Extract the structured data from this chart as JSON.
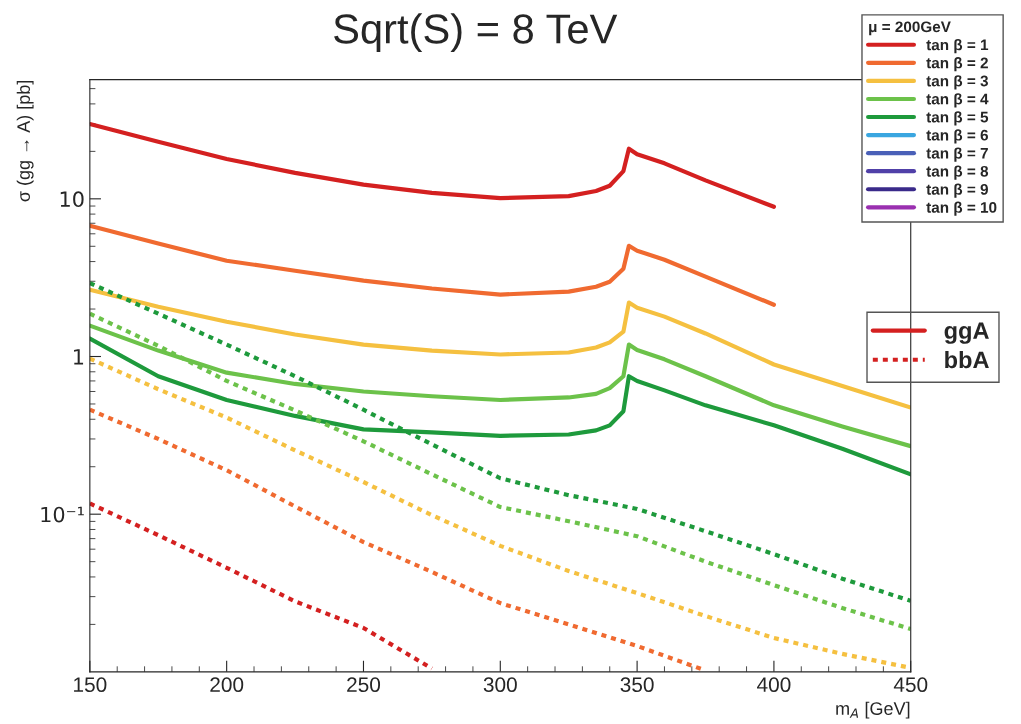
{
  "chart_data": {
    "type": "line",
    "title": "Sqrt(S) = 8 TeV",
    "ylabel": "σ (gg → A) [pb]",
    "xlabel": "m$_{A}$ [GeV]",
    "legend_title": "μ = 200GeV",
    "log": "y",
    "xlim": [
      150,
      450
    ],
    "xticks": [
      150,
      200,
      250,
      300,
      350,
      400,
      450
    ],
    "ylim": [
      0.01,
      57
    ],
    "yticks": [
      {
        "value": 0.1,
        "label": "10⁻¹"
      },
      1,
      10
    ],
    "grid": false,
    "legend": "top right",
    "annotations": [
      "ggA",
      "bbA"
    ],
    "series": [
      {
        "name": "tan β = 1",
        "color": "#d42020",
        "line_style": "solid",
        "x": [
          150,
          175,
          200,
          225,
          250,
          275,
          300,
          325,
          335,
          340,
          345,
          347,
          350,
          360,
          375,
          400
        ],
        "values": [
          29.8,
          23,
          17.9,
          14.6,
          12.3,
          10.9,
          10.1,
          10.4,
          11.2,
          12.1,
          15,
          20.8,
          19.2,
          16.8,
          13.1,
          8.9
        ]
      },
      {
        "name": "tan β = 2",
        "color": "#f06a30",
        "line_style": "solid",
        "x": [
          150,
          175,
          200,
          225,
          250,
          275,
          300,
          325,
          335,
          340,
          345,
          347,
          350,
          360,
          375,
          400
        ],
        "values": [
          6.75,
          5.2,
          4.05,
          3.5,
          3.03,
          2.7,
          2.47,
          2.58,
          2.77,
          2.98,
          3.6,
          5.04,
          4.69,
          4.11,
          3.21,
          2.13
        ]
      },
      {
        "name": "tan β = 3",
        "color": "#f5c040",
        "line_style": "solid",
        "x": [
          150,
          175,
          200,
          225,
          250,
          275,
          300,
          325,
          335,
          340,
          345,
          347,
          350,
          360,
          375,
          400,
          425,
          450
        ],
        "values": [
          2.65,
          2.07,
          1.66,
          1.38,
          1.19,
          1.09,
          1.03,
          1.06,
          1.14,
          1.23,
          1.44,
          2.2,
          2.04,
          1.79,
          1.4,
          0.89,
          0.65,
          0.475
        ]
      },
      {
        "name": "tan β = 4",
        "color": "#6cc24a",
        "line_style": "solid",
        "x": [
          150,
          175,
          200,
          225,
          250,
          275,
          300,
          325,
          335,
          340,
          345,
          347,
          350,
          360,
          375,
          400,
          425,
          450
        ],
        "values": [
          1.57,
          1.09,
          0.79,
          0.67,
          0.6,
          0.56,
          0.53,
          0.55,
          0.58,
          0.63,
          0.75,
          1.19,
          1.1,
          0.96,
          0.75,
          0.49,
          0.36,
          0.27
        ]
      },
      {
        "name": "tan β = 5",
        "color": "#1e9a3c",
        "line_style": "solid",
        "x": [
          150,
          175,
          200,
          225,
          250,
          275,
          300,
          325,
          335,
          340,
          345,
          347,
          350,
          360,
          375,
          400,
          425,
          450
        ],
        "values": [
          1.3,
          0.75,
          0.53,
          0.42,
          0.345,
          0.33,
          0.314,
          0.32,
          0.34,
          0.366,
          0.45,
          0.75,
          0.7,
          0.61,
          0.49,
          0.366,
          0.26,
          0.179
        ]
      },
      {
        "name": "tan β = 6",
        "color": "#3aa6e0",
        "line_style": "solid"
      },
      {
        "name": "tan β = 7",
        "color": "#4a60b8",
        "line_style": "solid"
      },
      {
        "name": "tan β = 8",
        "color": "#5040a8",
        "line_style": "solid"
      },
      {
        "name": "tan β = 9",
        "color": "#3a2a8a",
        "line_style": "solid"
      },
      {
        "name": "tan β = 10",
        "color": "#9a30b0",
        "line_style": "solid"
      },
      {
        "color": "#d42020",
        "line_style": "dotted",
        "x": [
          150,
          175,
          200,
          225,
          250,
          275
        ],
        "values": [
          0.117,
          0.0736,
          0.0457,
          0.028,
          0.019,
          0.0105
        ]
      },
      {
        "color": "#f06a30",
        "line_style": "dotted",
        "x": [
          150,
          175,
          200,
          225,
          250,
          275,
          300,
          325,
          350,
          375
        ],
        "values": [
          0.46,
          0.3,
          0.19,
          0.112,
          0.0665,
          0.043,
          0.0273,
          0.02,
          0.0146,
          0.0102
        ]
      },
      {
        "color": "#f5c040",
        "line_style": "dotted",
        "x": [
          150,
          175,
          200,
          225,
          250,
          275,
          300,
          325,
          350,
          375,
          400,
          425,
          450
        ],
        "values": [
          0.97,
          0.62,
          0.41,
          0.254,
          0.16,
          0.0986,
          0.063,
          0.0436,
          0.0316,
          0.0226,
          0.0164,
          0.013,
          0.0106
        ]
      },
      {
        "color": "#6cc24a",
        "line_style": "dotted",
        "x": [
          150,
          175,
          200,
          225,
          250,
          275,
          300,
          325,
          350,
          375,
          400,
          425,
          450
        ],
        "values": [
          1.87,
          1.17,
          0.7,
          0.455,
          0.29,
          0.179,
          0.111,
          0.0903,
          0.0725,
          0.05,
          0.0355,
          0.0254,
          0.0187
        ]
      },
      {
        "color": "#1e9a3c",
        "line_style": "dotted",
        "x": [
          150,
          175,
          200,
          225,
          250,
          275,
          300,
          325,
          350,
          375,
          400,
          425,
          450
        ],
        "values": [
          2.92,
          1.87,
          1.19,
          0.75,
          0.46,
          0.277,
          0.169,
          0.132,
          0.108,
          0.078,
          0.0558,
          0.039,
          0.0282
        ]
      }
    ]
  }
}
